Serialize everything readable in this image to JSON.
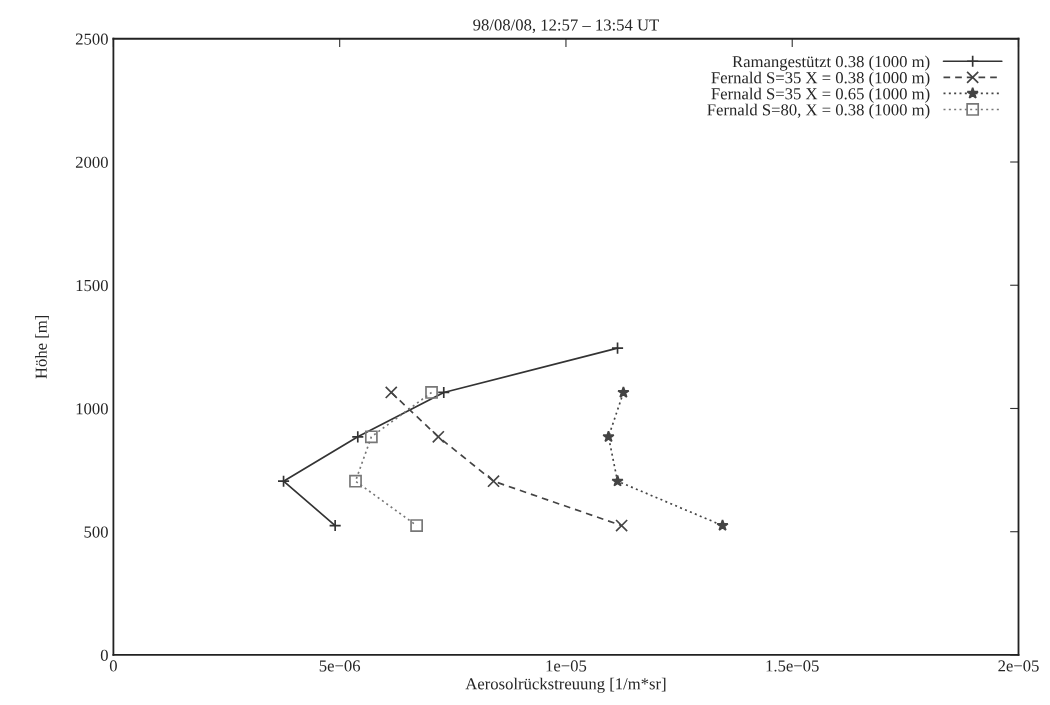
{
  "chart_data": {
    "type": "line",
    "title": "98/08/08, 12:57 – 13:54 UT",
    "xlabel": "Aerosolrückstreuung [1/m*sr]",
    "ylabel": "Höhe [m]",
    "xlim": [
      0,
      2e-05
    ],
    "xticks": [
      {
        "value": 0,
        "label": "0"
      },
      {
        "value": 5e-06,
        "label": "5e−06"
      },
      {
        "value": 1e-05,
        "label": "1e−05"
      },
      {
        "value": 1.5e-05,
        "label": "1.5e−05"
      },
      {
        "value": 2e-05,
        "label": "2e−05"
      }
    ],
    "ylim": [
      0,
      2500
    ],
    "yticks": [
      0,
      500,
      1000,
      1500,
      2000,
      2500
    ],
    "grid": false,
    "legend": "top right",
    "series": [
      {
        "name": "Ramangestützt 0.38 (1000 m)",
        "color": "#333333",
        "marker": "cross",
        "line_style": "solid",
        "x": [
          1.114e-05,
          7.3e-06,
          5.4e-06,
          3.76e-06,
          4.9e-06
        ],
        "values": [
          1245,
          1065,
          885,
          705,
          525
        ]
      },
      {
        "name": "Fernald S=35 X = 0.38 (1000 m)",
        "color": "#444444",
        "marker": "x",
        "line_style": "dashed",
        "x": [
          6.14e-06,
          7.18e-06,
          8.4e-06,
          1.123e-05
        ],
        "values": [
          1065,
          885,
          705,
          525
        ]
      },
      {
        "name": "Fernald S=35 X = 0.65 (1000 m)",
        "color": "#444444",
        "marker": "star",
        "line_style": "dotted",
        "x": [
          1.127e-05,
          1.094e-05,
          1.114e-05,
          1.346e-05
        ],
        "values": [
          1065,
          885,
          705,
          525
        ]
      },
      {
        "name": "Fernald S=80, X = 0.38 (1000 m)",
        "color": "#777777",
        "marker": "square",
        "line_style": "dotted",
        "x": [
          7.03e-06,
          5.7e-06,
          5.35e-06,
          6.7e-06
        ],
        "values": [
          1065,
          885,
          705,
          525
        ]
      }
    ]
  }
}
